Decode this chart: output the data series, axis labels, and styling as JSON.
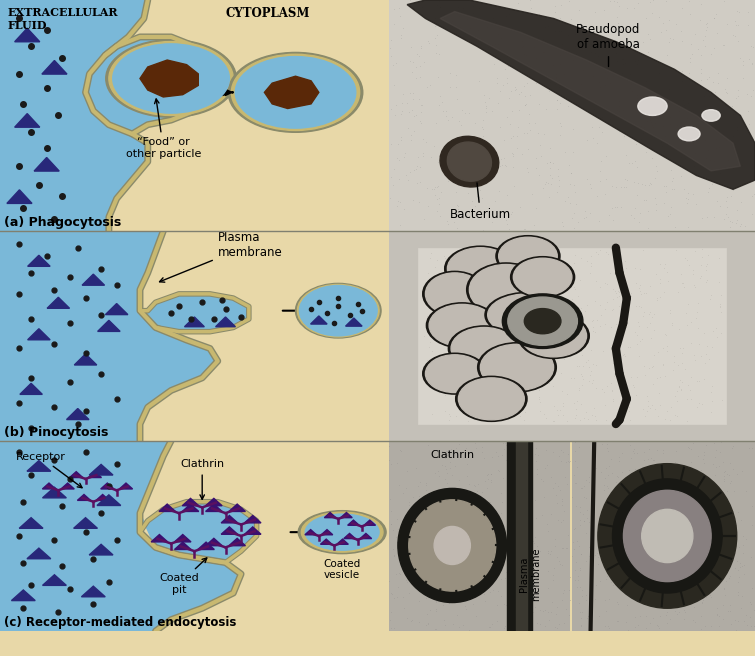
{
  "bg_color": "#e8d8a8",
  "blue_color": "#7ab8d8",
  "membrane_gray": "#8a8a6a",
  "membrane_tan": "#c8b870",
  "brown": "#5a2808",
  "dot_color": "#1a1a1a",
  "tri_color": "#28287a",
  "white": "#ffffff",
  "photo_bg_a": "#c0bcb4",
  "photo_bg_b": "#d0ccC4",
  "photo_bg_c": "#b8b4ac",
  "panel_a_label": "(a) Phagocytosis",
  "panel_b_label": "(b) Pinocytosis",
  "panel_c_label": "(c) Receptor-mediated endocytosis",
  "label_extracellular": "EXTRACELLULAR\nFLUID",
  "label_cytoplasm": "CYTOPLASM",
  "label_food": "“Food” or\nother particle",
  "label_plasma": "Plasma\nmembrane",
  "label_receptor": "Receptor",
  "label_clathrin": "Clathrin",
  "label_coated_pit": "Coated\npit",
  "label_coated_vesicle": "Coated\nvesicle",
  "label_pseudopod": "Pseudopod\nof amoeba",
  "label_bacterium": "Bacterium",
  "label_clathrin_em": "Clathrin",
  "label_plasma_em": "Plasma\nmembrane"
}
